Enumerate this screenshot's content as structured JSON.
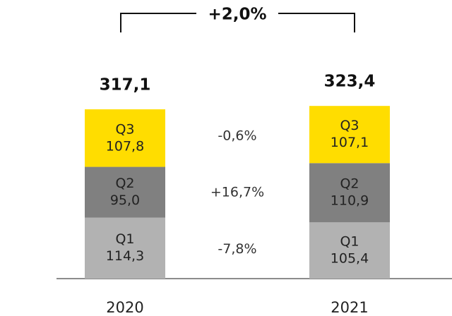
{
  "chart_data": {
    "type": "stacked-bar",
    "categories": [
      "2020",
      "2021"
    ],
    "series": [
      {
        "name": "Q1",
        "color": "#b2b2b2",
        "text_color": "#111111",
        "values": [
          114.3,
          105.4
        ],
        "value_labels": [
          "114,3",
          "105,4"
        ]
      },
      {
        "name": "Q2",
        "color": "#808080",
        "text_color": "#ffffff",
        "values": [
          95.0,
          110.9
        ],
        "value_labels": [
          "95,0",
          "110,9"
        ]
      },
      {
        "name": "Q3",
        "color": "#ffdd00",
        "text_color": "#111111",
        "values": [
          107.8,
          107.1
        ],
        "value_labels": [
          "107,8",
          "107,1"
        ]
      }
    ],
    "totals": [
      317.1,
      323.4
    ],
    "total_labels": [
      "317,1",
      "323,4"
    ],
    "growth": {
      "values": [
        -7.8,
        16.7,
        -0.6
      ],
      "value_labels": [
        "-7,8%",
        "+16,7%",
        "-0,6%"
      ]
    },
    "total_growth": {
      "value": 2.0,
      "label": "+2,0%"
    }
  }
}
